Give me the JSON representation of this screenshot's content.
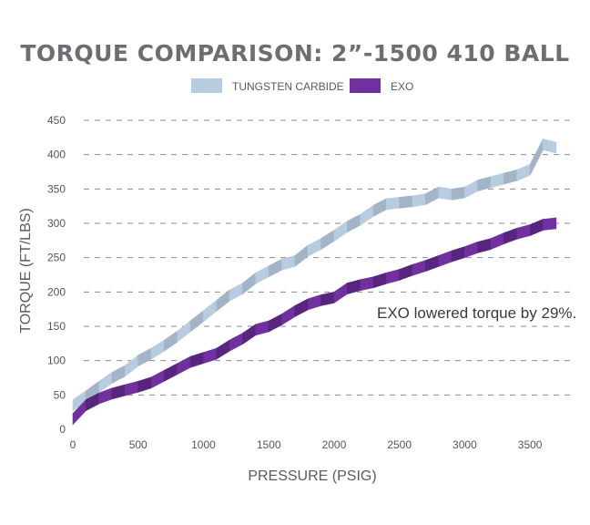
{
  "chart_data": {
    "type": "line",
    "title": "TORQUE COMPARISON: 2”-1500 410 BALL",
    "xlabel": "PRESSURE (PSIG)",
    "ylabel": "TORQUE (FT/LBS)",
    "xlim": [
      0,
      3750
    ],
    "ylim": [
      0,
      450
    ],
    "xticks": [
      "0",
      "500",
      "1000",
      "1500",
      "2000",
      "2500",
      "3000",
      "3500"
    ],
    "yticks": [
      "0",
      "50",
      "100",
      "150",
      "200",
      "250",
      "300",
      "350",
      "400",
      "450"
    ],
    "grid": true,
    "legend_position": "top-center",
    "annotation": "EXO lowered torque by 29%.",
    "series": [
      {
        "name": "TUNGSTEN CARBIDE",
        "color": "#b8cce0",
        "x": [
          0,
          100,
          200,
          300,
          400,
          500,
          600,
          700,
          800,
          900,
          1000,
          1100,
          1200,
          1300,
          1400,
          1500,
          1600,
          1700,
          1800,
          1900,
          2000,
          2100,
          2200,
          2300,
          2400,
          2500,
          2600,
          2700,
          2800,
          2900,
          3000,
          3100,
          3200,
          3300,
          3400,
          3500,
          3600,
          3700
        ],
        "values": [
          35,
          48,
          62,
          75,
          85,
          100,
          110,
          122,
          135,
          150,
          165,
          180,
          195,
          205,
          220,
          230,
          240,
          245,
          260,
          270,
          282,
          295,
          305,
          318,
          328,
          330,
          332,
          335,
          345,
          342,
          345,
          355,
          360,
          365,
          370,
          378,
          415,
          410
        ]
      },
      {
        "name": "EXO",
        "color": "#7030a0",
        "x": [
          0,
          100,
          200,
          300,
          400,
          500,
          600,
          700,
          800,
          900,
          1000,
          1100,
          1200,
          1300,
          1400,
          1500,
          1600,
          1700,
          1800,
          1900,
          2000,
          2100,
          2200,
          2300,
          2400,
          2500,
          2600,
          2700,
          2800,
          2900,
          3000,
          3100,
          3200,
          3300,
          3400,
          3500,
          3600,
          3700
        ],
        "values": [
          15,
          35,
          45,
          52,
          57,
          62,
          68,
          78,
          88,
          98,
          104,
          110,
          122,
          132,
          145,
          150,
          160,
          172,
          182,
          188,
          192,
          205,
          210,
          214,
          220,
          225,
          232,
          238,
          245,
          252,
          258,
          265,
          270,
          278,
          285,
          290,
          298,
          300
        ]
      }
    ]
  }
}
